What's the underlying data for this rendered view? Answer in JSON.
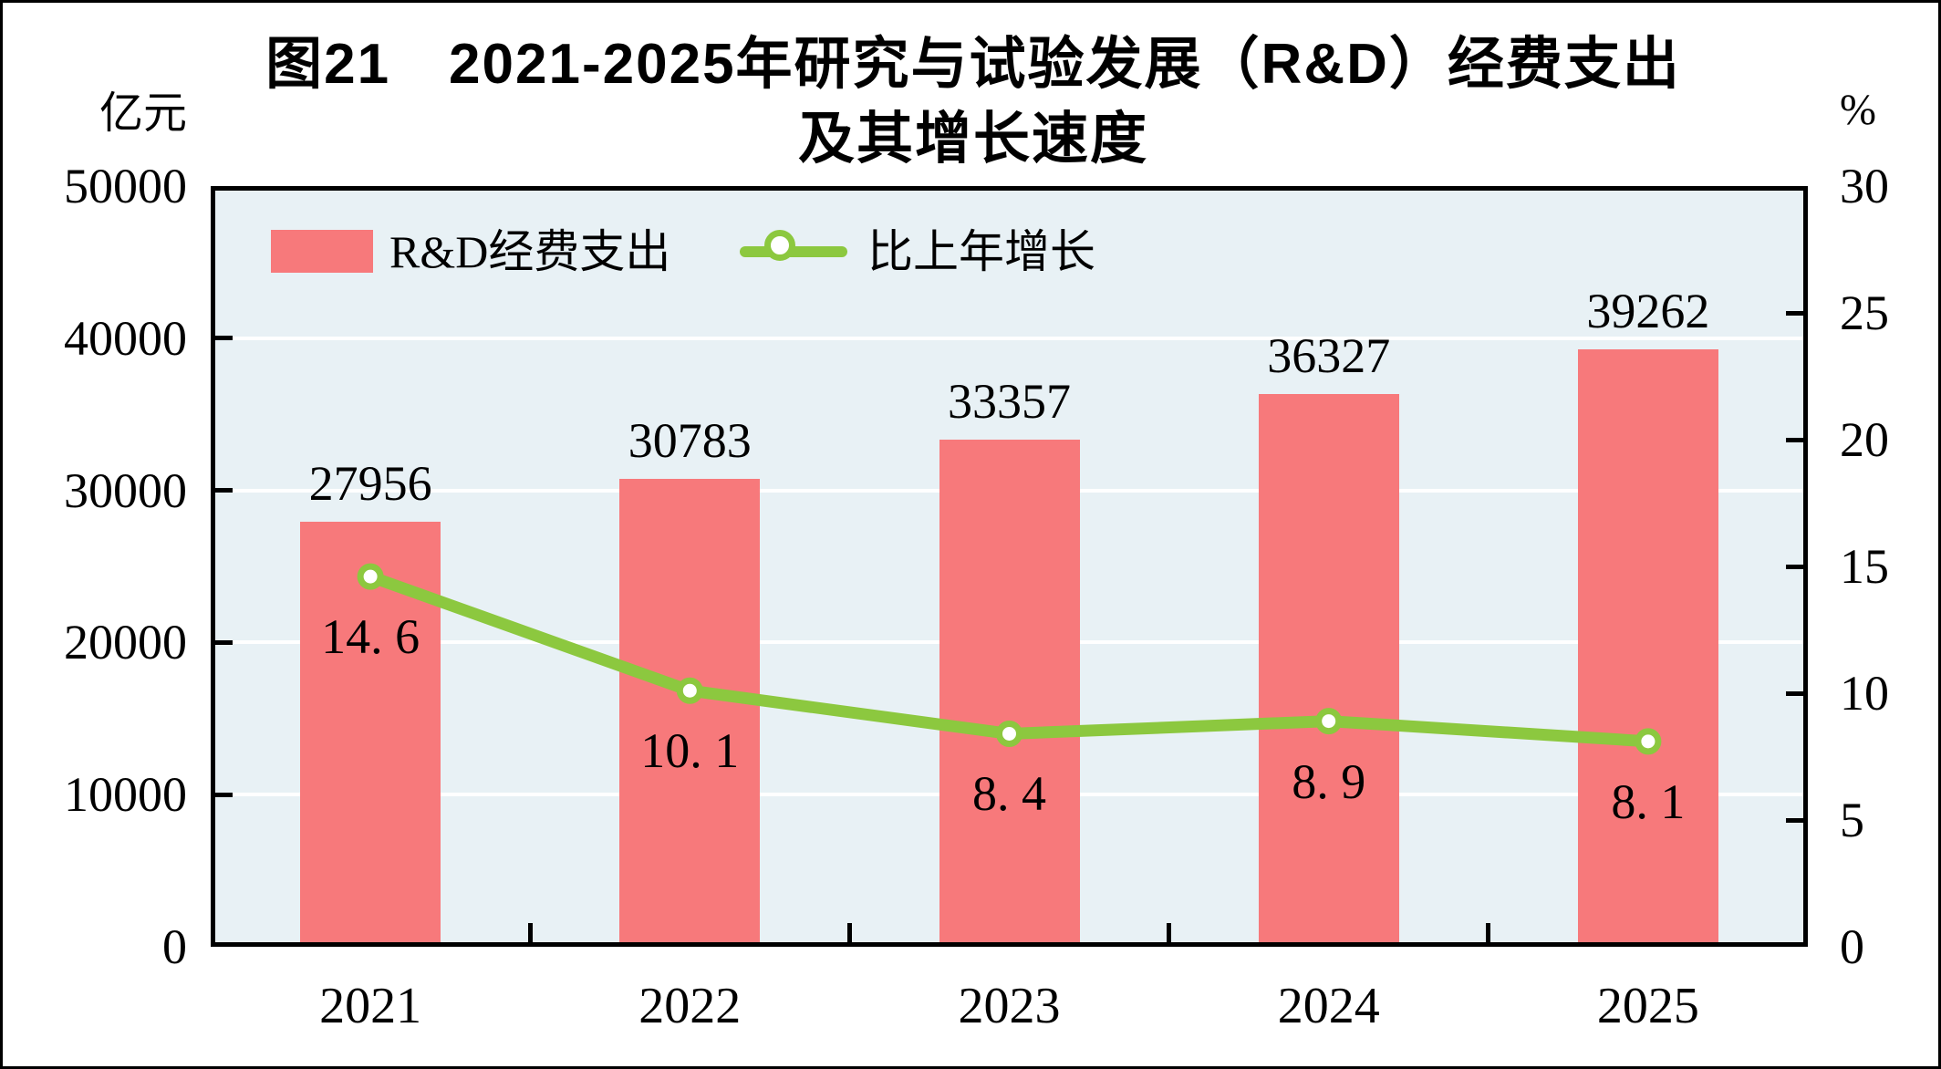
{
  "figure": {
    "title_line1": "图21　2021-2025年研究与试验发展（R&D）经费支出",
    "title_line2": "及其增长速度",
    "left_axis_unit": "亿元",
    "right_axis_unit": "%"
  },
  "legend": [
    {
      "label": "R&D经费支出",
      "type": "bar"
    },
    {
      "label": "比上年增长",
      "type": "line"
    }
  ],
  "colors": {
    "bar": "#F7797B",
    "line": "#8CC83F",
    "marker_fill": "#FFFFFF",
    "plot_bg": "#E8F1F5",
    "gridline": "#FFFFFF",
    "axis": "#000000",
    "text": "#000000"
  },
  "chart_data": {
    "type": "bar+line",
    "categories": [
      "2021",
      "2022",
      "2023",
      "2024",
      "2025"
    ],
    "series": [
      {
        "name": "R&D经费支出",
        "type": "bar",
        "axis": "left",
        "values": [
          27956,
          30783,
          33357,
          36327,
          39262
        ],
        "value_labels": [
          "27956",
          "30783",
          "33357",
          "36327",
          "39262"
        ]
      },
      {
        "name": "比上年增长",
        "type": "line",
        "axis": "right",
        "marker": "white-circle",
        "values": [
          14.6,
          10.1,
          8.4,
          8.9,
          8.1
        ],
        "value_labels": [
          "14. 6",
          "10. 1",
          "8. 4",
          "8. 9",
          "8. 1"
        ]
      }
    ],
    "left_axis": {
      "label": "亿元",
      "min": 0,
      "max": 50000,
      "tick_step": 10000,
      "ticks": [
        0,
        10000,
        20000,
        30000,
        40000,
        50000
      ]
    },
    "right_axis": {
      "label": "%",
      "min": 0,
      "max": 30,
      "tick_step": 5,
      "ticks": [
        0,
        5,
        10,
        15,
        20,
        25,
        30
      ]
    },
    "grid": "horizontal-on-left-axis-steps",
    "legend_position": "top-left-inside-plot",
    "title": "图21　2021-2025年研究与试验发展（R&D）经费支出及其增长速度"
  }
}
